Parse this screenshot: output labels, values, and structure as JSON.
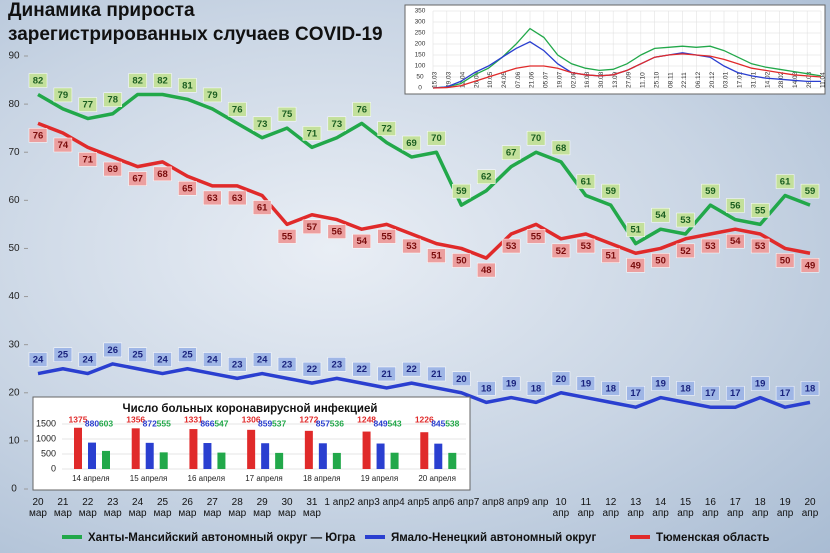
{
  "chart_data": [
    {
      "type": "line",
      "title": [
        "Динамика прироста",
        "зарегистрированных случаев COVID-19"
      ],
      "categories": [
        "20 мар",
        "21 мар",
        "22 мар",
        "23 мар",
        "24 мар",
        "25 мар",
        "26 мар",
        "27 мар",
        "28 мар",
        "29 мар",
        "30 мар",
        "31 мар",
        "1 апр",
        "2 апр",
        "3 апр",
        "4 апр",
        "5 апр",
        "6 апр",
        "7 апр",
        "8 апр",
        "9 апр",
        "10 апр",
        "11 апр",
        "12 апр",
        "13 апр",
        "14 апр",
        "15 апр",
        "16 апр",
        "17 апр",
        "18 апр",
        "19 апр",
        "20 апр"
      ],
      "series": [
        {
          "name": "Ханты-Мансийский автономный округ — Югра",
          "color": "#22a84a",
          "values": [
            82,
            79,
            77,
            78,
            82,
            82,
            81,
            79,
            76,
            73,
            75,
            71,
            73,
            76,
            72,
            69,
            70,
            59,
            62,
            67,
            70,
            68,
            61,
            59,
            51,
            54,
            53,
            59,
            56,
            55,
            61,
            59
          ]
        },
        {
          "name": "Ямало-Ненецкий автономный округ",
          "color": "#2a3fd0",
          "values": [
            24,
            25,
            24,
            26,
            25,
            24,
            25,
            24,
            23,
            24,
            23,
            22,
            23,
            22,
            21,
            22,
            21,
            20,
            18,
            19,
            18,
            20,
            19,
            18,
            17,
            19,
            18,
            17,
            17,
            19,
            17,
            18
          ]
        },
        {
          "name": "Тюменская область",
          "color": "#e02a2a",
          "values": [
            76,
            74,
            71,
            69,
            67,
            68,
            65,
            63,
            63,
            61,
            55,
            57,
            56,
            54,
            55,
            53,
            51,
            50,
            48,
            53,
            55,
            52,
            53,
            51,
            49,
            50,
            52,
            53,
            54,
            53,
            50,
            49
          ]
        }
      ],
      "ylim": [
        0,
        90
      ],
      "yticks": [
        0,
        10,
        20,
        30,
        40,
        50,
        60,
        70,
        80,
        90
      ],
      "legend": "bottom"
    },
    {
      "type": "line",
      "categories": [
        "15.03",
        "29.03",
        "12.04",
        "26.04",
        "10.05",
        "24.05",
        "07.06",
        "21.06",
        "05.07",
        "19.07",
        "02.08",
        "16.08",
        "30.08",
        "13.09",
        "27.09",
        "11.10",
        "25.10",
        "08.11",
        "22.11",
        "06.12",
        "20.12",
        "03.01",
        "17.01",
        "31.01",
        "14.02",
        "28.02",
        "14.03",
        "28.03",
        "11.04"
      ],
      "series": [
        {
          "color": "#22a84a",
          "values": [
            0,
            5,
            20,
            60,
            90,
            140,
            200,
            270,
            230,
            150,
            110,
            90,
            80,
            85,
            110,
            150,
            180,
            185,
            190,
            185,
            190,
            170,
            140,
            110,
            95,
            85,
            75,
            65,
            55
          ]
        },
        {
          "color": "#2a3fd0",
          "values": [
            0,
            5,
            30,
            70,
            100,
            140,
            180,
            210,
            170,
            110,
            70,
            60,
            55,
            60,
            80,
            110,
            140,
            150,
            160,
            150,
            140,
            100,
            70,
            55,
            45,
            40,
            35,
            30,
            30
          ]
        },
        {
          "color": "#e02a2a",
          "values": [
            0,
            2,
            10,
            30,
            50,
            70,
            90,
            100,
            100,
            90,
            70,
            60,
            55,
            60,
            80,
            110,
            140,
            150,
            155,
            150,
            145,
            130,
            110,
            90,
            80,
            70,
            60,
            55,
            50
          ]
        }
      ],
      "ylim": [
        0,
        350
      ],
      "yticks": [
        0,
        50,
        100,
        150,
        200,
        250,
        300,
        350
      ]
    },
    {
      "type": "bar",
      "title": "Число больных коронавирусной инфекцией",
      "categories": [
        "14 апреля",
        "15 апреля",
        "16 апреля",
        "17 апреля",
        "18 апреля",
        "19 апреля",
        "20 апреля"
      ],
      "series": [
        {
          "color": "#e02a2a",
          "values": [
            1375,
            1356,
            1331,
            1306,
            1272,
            1248,
            1226
          ]
        },
        {
          "color": "#2a3fd0",
          "values": [
            880,
            872,
            866,
            859,
            857,
            849,
            845
          ]
        },
        {
          "color": "#22a84a",
          "values": [
            603,
            555,
            547,
            537,
            536,
            543,
            538
          ]
        }
      ],
      "ylim": [
        0,
        1500
      ],
      "yticks": [
        0,
        500,
        1000,
        1500
      ]
    }
  ]
}
